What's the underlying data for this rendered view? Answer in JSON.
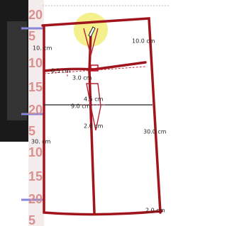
{
  "ruler": {
    "numbers": [
      "20",
      "5",
      "10",
      "15",
      "20",
      "5",
      "10",
      "15",
      "20",
      "5"
    ]
  },
  "labels": [
    "10. cm",
    "10.0 cm",
    "0.5 cm",
    "3.0 cm",
    "4.5 cm",
    "9.0 cm",
    "2.0 cm",
    "30.0 cm",
    "30. cm",
    "2.0 cm"
  ]
}
